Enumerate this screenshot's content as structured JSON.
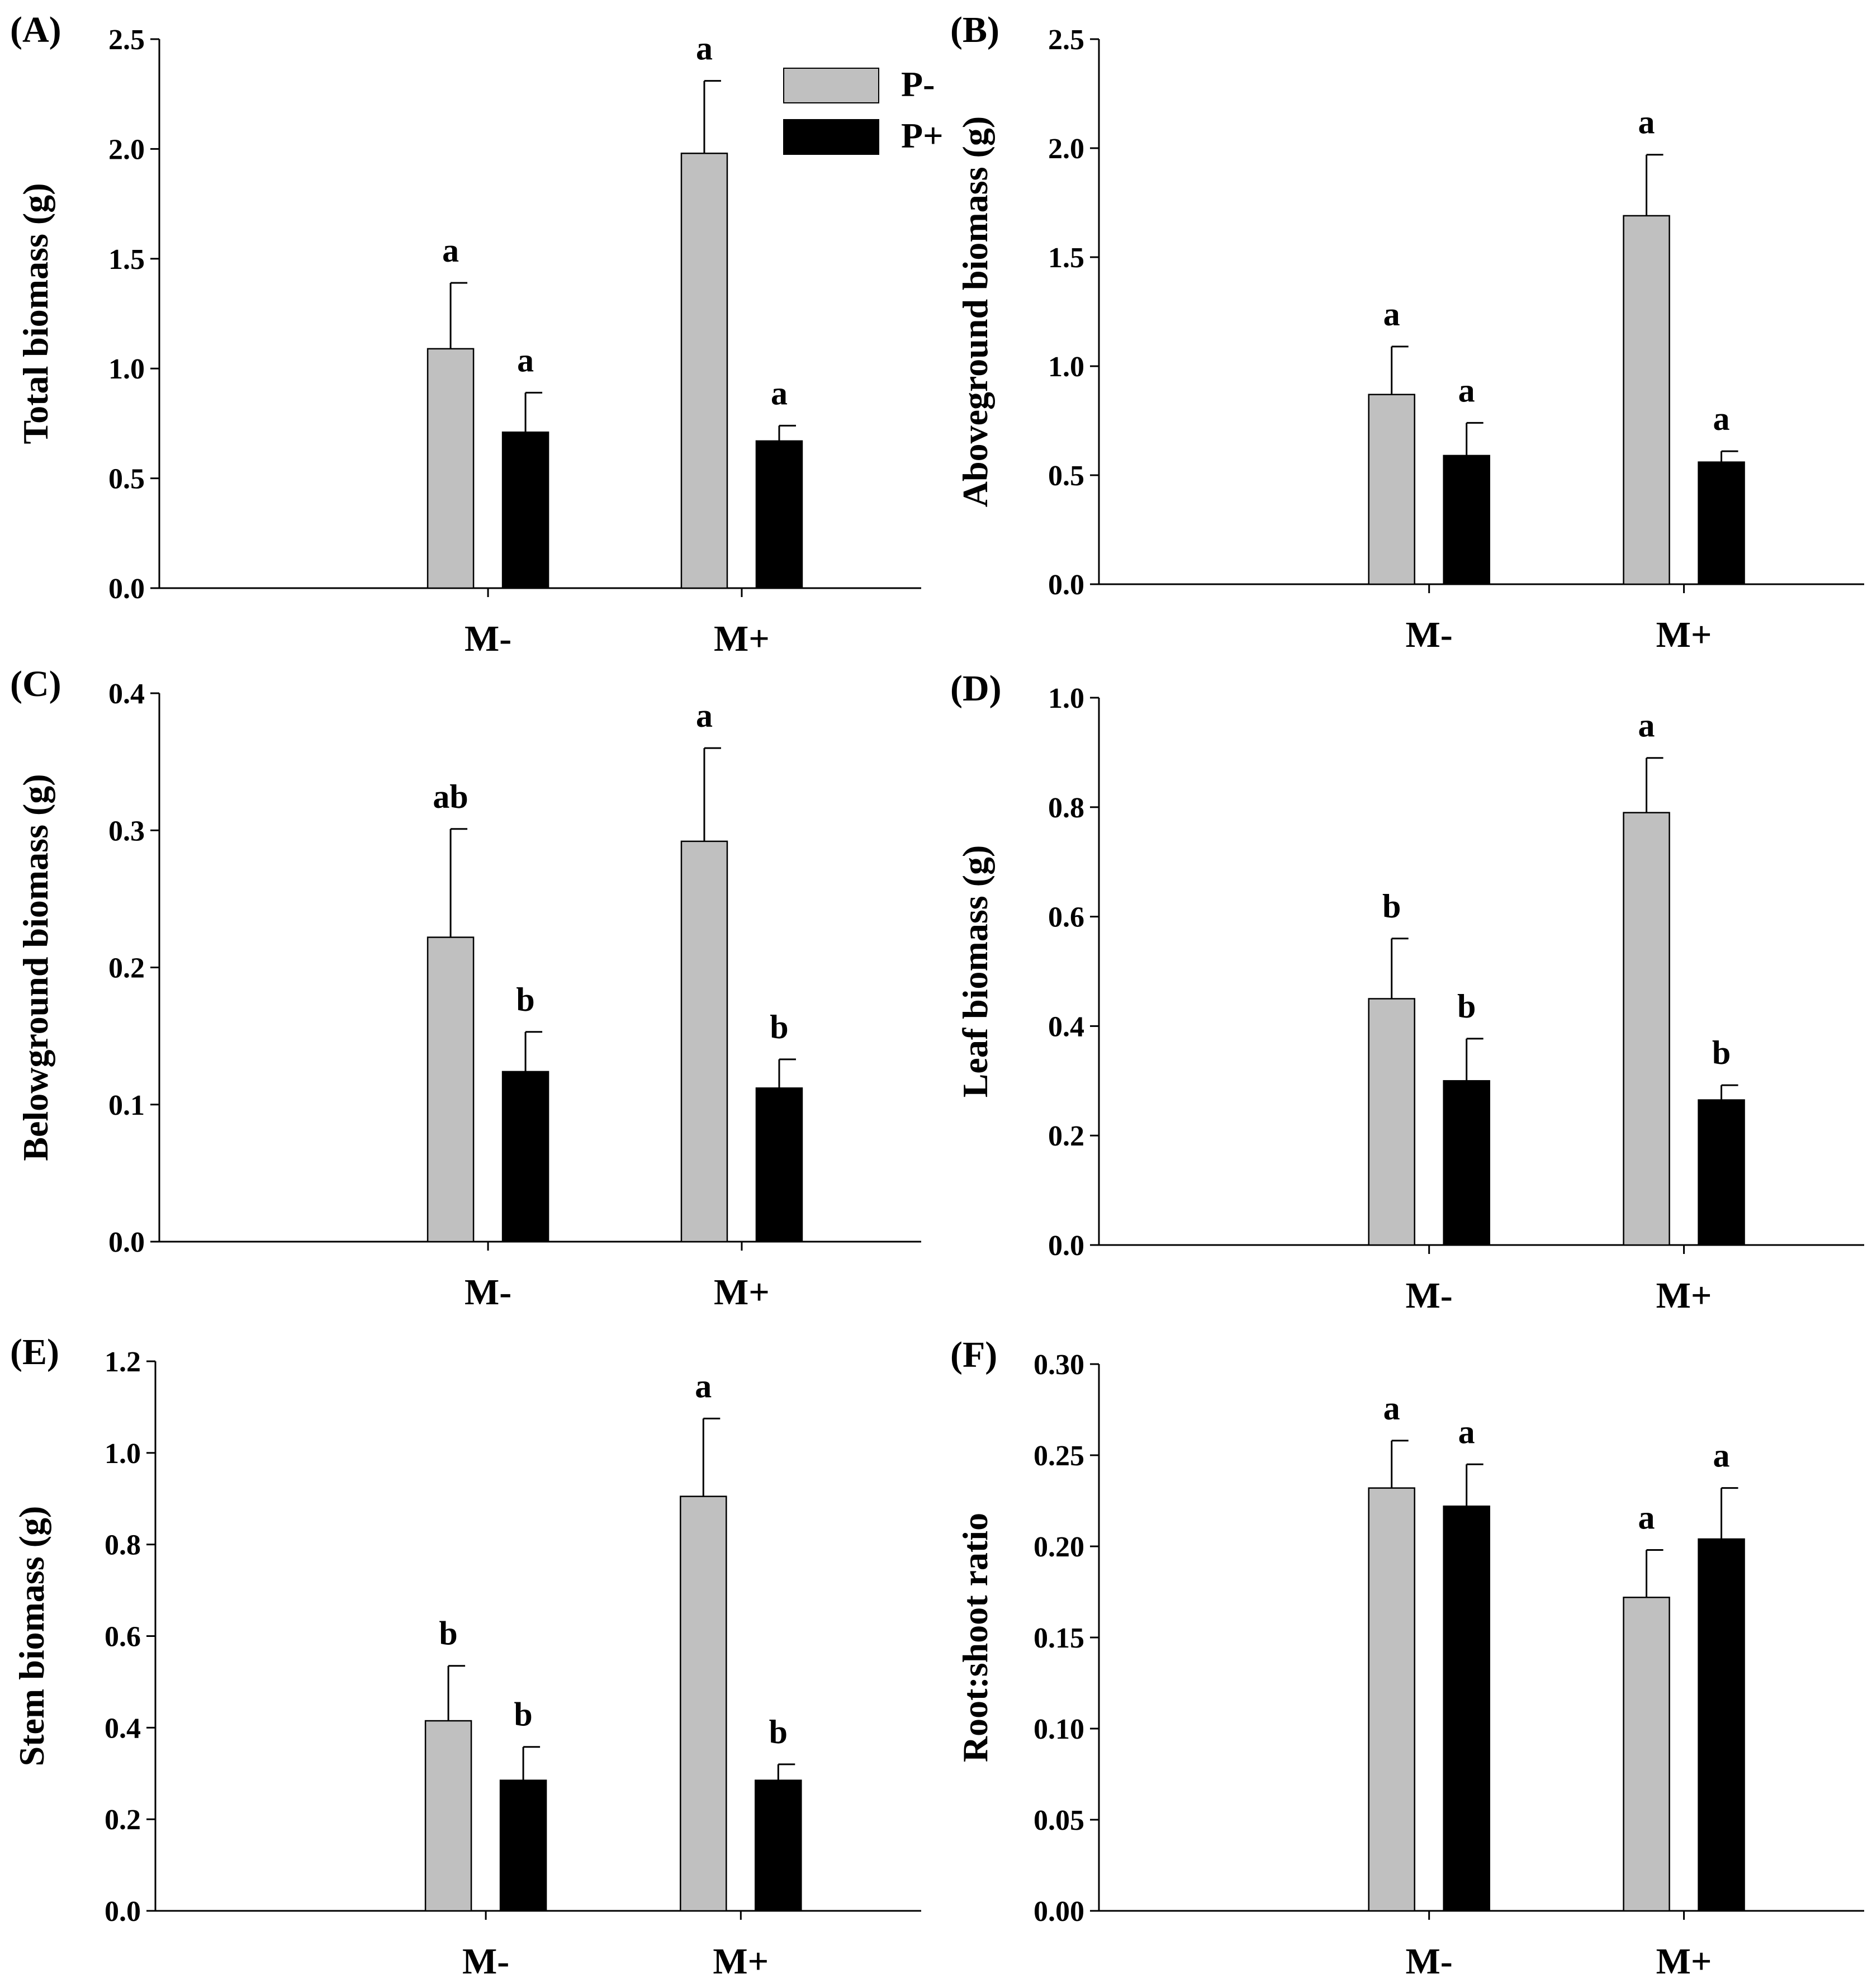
{
  "figure": {
    "legend": [
      {
        "label": "P-",
        "color": "#c0c0c0"
      },
      {
        "label": "P+",
        "color": "#000000"
      }
    ]
  },
  "colors": {
    "p_minus": "#c0c0c0",
    "p_plus": "#000000",
    "axis": "#000000"
  },
  "chart_data": [
    {
      "panel": "(A)",
      "type": "bar",
      "ylabel": "Total biomass (g)",
      "categories": [
        "M-",
        "M+"
      ],
      "ylim": [
        0,
        2.5
      ],
      "yticks": [
        "0.0",
        "0.5",
        "1.0",
        "1.5",
        "2.0",
        "2.5"
      ],
      "series": [
        {
          "name": "P-",
          "values": [
            1.09,
            1.98
          ],
          "errors": [
            0.3,
            0.33
          ],
          "letters": [
            "a",
            "a"
          ]
        },
        {
          "name": "P+",
          "values": [
            0.71,
            0.67
          ],
          "errors": [
            0.18,
            0.07
          ],
          "letters": [
            "a",
            "a"
          ]
        }
      ]
    },
    {
      "panel": "(B)",
      "type": "bar",
      "ylabel": "Aboveground biomass (g)",
      "categories": [
        "M-",
        "M+"
      ],
      "ylim": [
        0,
        2.5
      ],
      "yticks": [
        "0.0",
        "0.5",
        "1.0",
        "1.5",
        "2.0",
        "2.5"
      ],
      "series": [
        {
          "name": "P-",
          "values": [
            0.87,
            1.69
          ],
          "errors": [
            0.22,
            0.28
          ],
          "letters": [
            "a",
            "a"
          ]
        },
        {
          "name": "P+",
          "values": [
            0.59,
            0.56
          ],
          "errors": [
            0.15,
            0.05
          ],
          "letters": [
            "a",
            "a"
          ]
        }
      ]
    },
    {
      "panel": "(C)",
      "type": "bar",
      "ylabel": "Belowground biomass (g)",
      "categories": [
        "M-",
        "M+"
      ],
      "ylim": [
        0,
        0.4
      ],
      "yticks": [
        "0.0",
        "0.1",
        "0.2",
        "0.3",
        "0.4"
      ],
      "series": [
        {
          "name": "P-",
          "values": [
            0.222,
            0.292
          ],
          "errors": [
            0.079,
            0.068
          ],
          "letters": [
            "ab",
            "a"
          ]
        },
        {
          "name": "P+",
          "values": [
            0.124,
            0.112
          ],
          "errors": [
            0.029,
            0.021
          ],
          "letters": [
            "b",
            "b"
          ]
        }
      ]
    },
    {
      "panel": "(D)",
      "type": "bar",
      "ylabel": "Leaf biomass (g)",
      "categories": [
        "M-",
        "M+"
      ],
      "ylim": [
        0,
        1.0
      ],
      "yticks": [
        "0.0",
        "0.2",
        "0.4",
        "0.6",
        "0.8",
        "1.0"
      ],
      "series": [
        {
          "name": "P-",
          "values": [
            0.45,
            0.79
          ],
          "errors": [
            0.11,
            0.1
          ],
          "letters": [
            "b",
            "a"
          ]
        },
        {
          "name": "P+",
          "values": [
            0.3,
            0.265
          ],
          "errors": [
            0.077,
            0.027
          ],
          "letters": [
            "b",
            "b"
          ]
        }
      ]
    },
    {
      "panel": "(E)",
      "type": "bar",
      "ylabel": "Stem biomass (g)",
      "categories": [
        "M-",
        "M+"
      ],
      "ylim": [
        0,
        1.2
      ],
      "yticks": [
        "0.0",
        "0.2",
        "0.4",
        "0.6",
        "0.8",
        "1.0",
        "1.2"
      ],
      "series": [
        {
          "name": "P-",
          "values": [
            0.415,
            0.905
          ],
          "errors": [
            0.12,
            0.17
          ],
          "letters": [
            "b",
            "a"
          ]
        },
        {
          "name": "P+",
          "values": [
            0.285,
            0.285
          ],
          "errors": [
            0.073,
            0.035
          ],
          "letters": [
            "b",
            "b"
          ]
        }
      ]
    },
    {
      "panel": "(F)",
      "type": "bar",
      "ylabel": "Root:shoot ratio",
      "categories": [
        "M-",
        "M+"
      ],
      "ylim": [
        0,
        0.3
      ],
      "yticks": [
        "0.00",
        "0.05",
        "0.10",
        "0.15",
        "0.20",
        "0.25",
        "0.30"
      ],
      "series": [
        {
          "name": "P-",
          "values": [
            0.232,
            0.172
          ],
          "errors": [
            0.026,
            0.026
          ],
          "letters": [
            "a",
            "a"
          ]
        },
        {
          "name": "P+",
          "values": [
            0.222,
            0.204
          ],
          "errors": [
            0.023,
            0.028
          ],
          "letters": [
            "a",
            "a"
          ]
        }
      ]
    }
  ]
}
